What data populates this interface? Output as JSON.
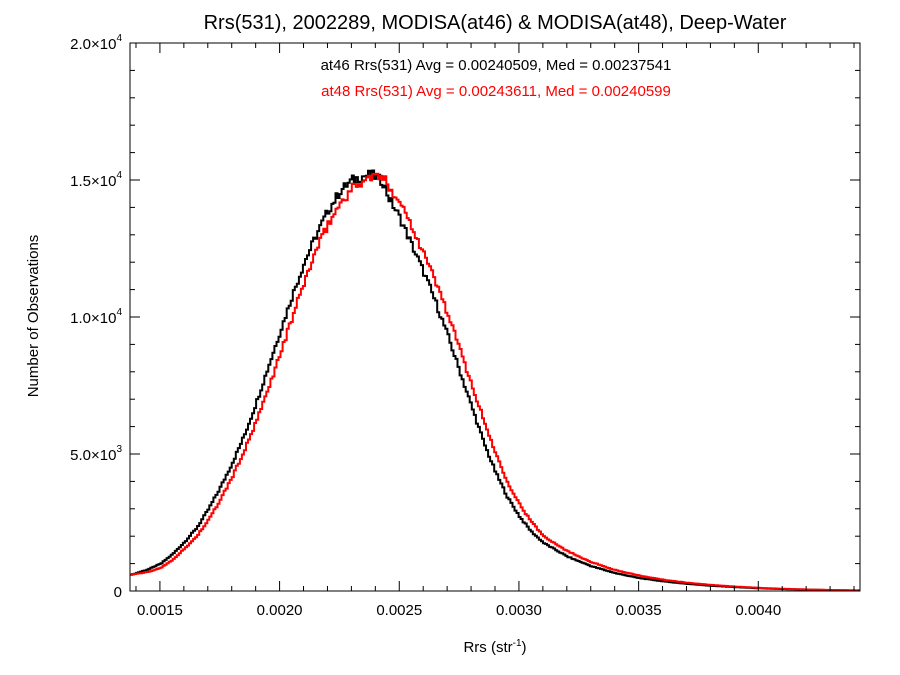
{
  "chart_data": {
    "type": "histogram-step",
    "title": "Rrs(531), 2002289, MODISA(at46) & MODISA(at48), Deep-Water",
    "xlabel_base": "Rrs (str",
    "xlabel_sup": "-1",
    "xlabel_close": ")",
    "ylabel": "Number of Observations",
    "xlim": [
      0.001375,
      0.004425
    ],
    "ylim": [
      0,
      20000
    ],
    "x_ticks": [
      {
        "value": 0.0015,
        "label": "0.0015"
      },
      {
        "value": 0.002,
        "label": "0.0020"
      },
      {
        "value": 0.0025,
        "label": "0.0025"
      },
      {
        "value": 0.003,
        "label": "0.0030"
      },
      {
        "value": 0.0035,
        "label": "0.0035"
      },
      {
        "value": 0.004,
        "label": "0.0040"
      }
    ],
    "y_ticks": [
      {
        "value": 0,
        "label": "0",
        "exp": ""
      },
      {
        "value": 5000,
        "label": "5.0×10",
        "exp": "3"
      },
      {
        "value": 10000,
        "label": "1.0×10",
        "exp": "4"
      },
      {
        "value": 15000,
        "label": "1.5×10",
        "exp": "4"
      },
      {
        "value": 20000,
        "label": "2.0×10",
        "exp": "4"
      }
    ],
    "annotations": [
      {
        "text": "at46 Rrs(531) Avg = 0.00240509, Med = 0.00237541",
        "color": "#000000"
      },
      {
        "text": "at48 Rrs(531) Avg = 0.00243611, Med = 0.00240599",
        "color": "#ff0000"
      }
    ],
    "series": [
      {
        "name": "at46",
        "color": "#000000",
        "x": [
          0.00138,
          0.00145,
          0.0015,
          0.00155,
          0.0016,
          0.00165,
          0.0017,
          0.00175,
          0.0018,
          0.00185,
          0.0019,
          0.00195,
          0.002,
          0.00205,
          0.0021,
          0.00215,
          0.0022,
          0.00225,
          0.0023,
          0.00235,
          0.00238,
          0.0024,
          0.00243,
          0.00245,
          0.0025,
          0.00255,
          0.0026,
          0.00265,
          0.0027,
          0.00275,
          0.0028,
          0.00285,
          0.0029,
          0.00295,
          0.003,
          0.00305,
          0.0031,
          0.0032,
          0.0033,
          0.0034,
          0.0035,
          0.0036,
          0.0037,
          0.0038,
          0.0039,
          0.004,
          0.0041,
          0.0042,
          0.0043,
          0.0044
        ],
        "y": [
          600,
          800,
          1000,
          1350,
          1800,
          2300,
          3000,
          3800,
          4700,
          5700,
          6900,
          8200,
          9500,
          10800,
          12000,
          13000,
          13900,
          14600,
          15000,
          15150,
          15200,
          15100,
          14900,
          14400,
          13600,
          12600,
          11600,
          10500,
          9300,
          8000,
          6700,
          5400,
          4300,
          3400,
          2700,
          2150,
          1750,
          1250,
          900,
          650,
          470,
          350,
          260,
          190,
          140,
          100,
          70,
          50,
          30,
          20
        ]
      },
      {
        "name": "at48",
        "color": "#ff0000",
        "x": [
          0.00138,
          0.00145,
          0.0015,
          0.00155,
          0.0016,
          0.00165,
          0.0017,
          0.00175,
          0.0018,
          0.00185,
          0.0019,
          0.00195,
          0.002,
          0.00205,
          0.0021,
          0.00215,
          0.0022,
          0.00225,
          0.0023,
          0.00235,
          0.00238,
          0.0024,
          0.00243,
          0.00245,
          0.0025,
          0.00255,
          0.0026,
          0.00265,
          0.0027,
          0.00275,
          0.0028,
          0.00285,
          0.0029,
          0.00295,
          0.003,
          0.00305,
          0.0031,
          0.0032,
          0.0033,
          0.0034,
          0.0035,
          0.0036,
          0.0037,
          0.0038,
          0.0039,
          0.004,
          0.0041,
          0.0042,
          0.0043,
          0.0044
        ],
        "y": [
          600,
          700,
          850,
          1150,
          1550,
          2000,
          2600,
          3350,
          4200,
          5150,
          6200,
          7400,
          8700,
          10000,
          11300,
          12450,
          13400,
          14150,
          14700,
          15000,
          15100,
          15150,
          15050,
          14800,
          14200,
          13300,
          12300,
          11250,
          10100,
          8800,
          7500,
          6200,
          5000,
          3950,
          3150,
          2500,
          2000,
          1450,
          1050,
          760,
          560,
          410,
          300,
          220,
          160,
          115,
          80,
          55,
          35,
          20
        ]
      }
    ]
  }
}
